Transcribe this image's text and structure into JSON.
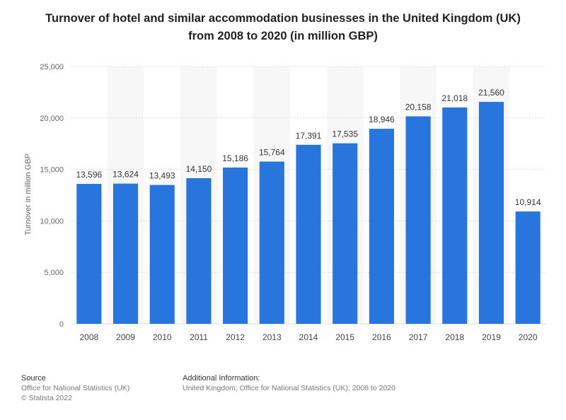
{
  "chart_data": {
    "type": "bar",
    "title_line1": "Turnover of hotel and similar accommodation businesses in the United Kingdom (UK)",
    "title_line2": "from 2008 to 2020 (in million GBP)",
    "xlabel": "",
    "ylabel": "Turnover in million GBP",
    "ylim": [
      0,
      25000
    ],
    "yticks": [
      0,
      5000,
      10000,
      15000,
      20000,
      25000
    ],
    "ytick_labels": [
      "0",
      "5,000",
      "10,000",
      "15,000",
      "20,000",
      "25,000"
    ],
    "categories": [
      "2008",
      "2009",
      "2010",
      "2011",
      "2012",
      "2013",
      "2014",
      "2015",
      "2016",
      "2017",
      "2018",
      "2019",
      "2020"
    ],
    "values": [
      13596,
      13624,
      13493,
      14150,
      15186,
      15764,
      17391,
      17535,
      18946,
      20158,
      21018,
      21560,
      10914
    ],
    "value_labels": [
      "13,596",
      "13,624",
      "13,493",
      "14,150",
      "15,186",
      "15,764",
      "17,391",
      "17,535",
      "18,946",
      "20,158",
      "21,018",
      "21,560",
      "10,914"
    ],
    "bar_color": "#2876dd",
    "grid": true
  },
  "footer": {
    "source_heading": "Source",
    "source_line1": "Office for National Statistics (UK)",
    "source_line2": "© Statista 2022",
    "info_heading": "Additional Information:",
    "info_line1": "United Kingdom; Office for National Statistics (UK); 2008 to 2020"
  }
}
